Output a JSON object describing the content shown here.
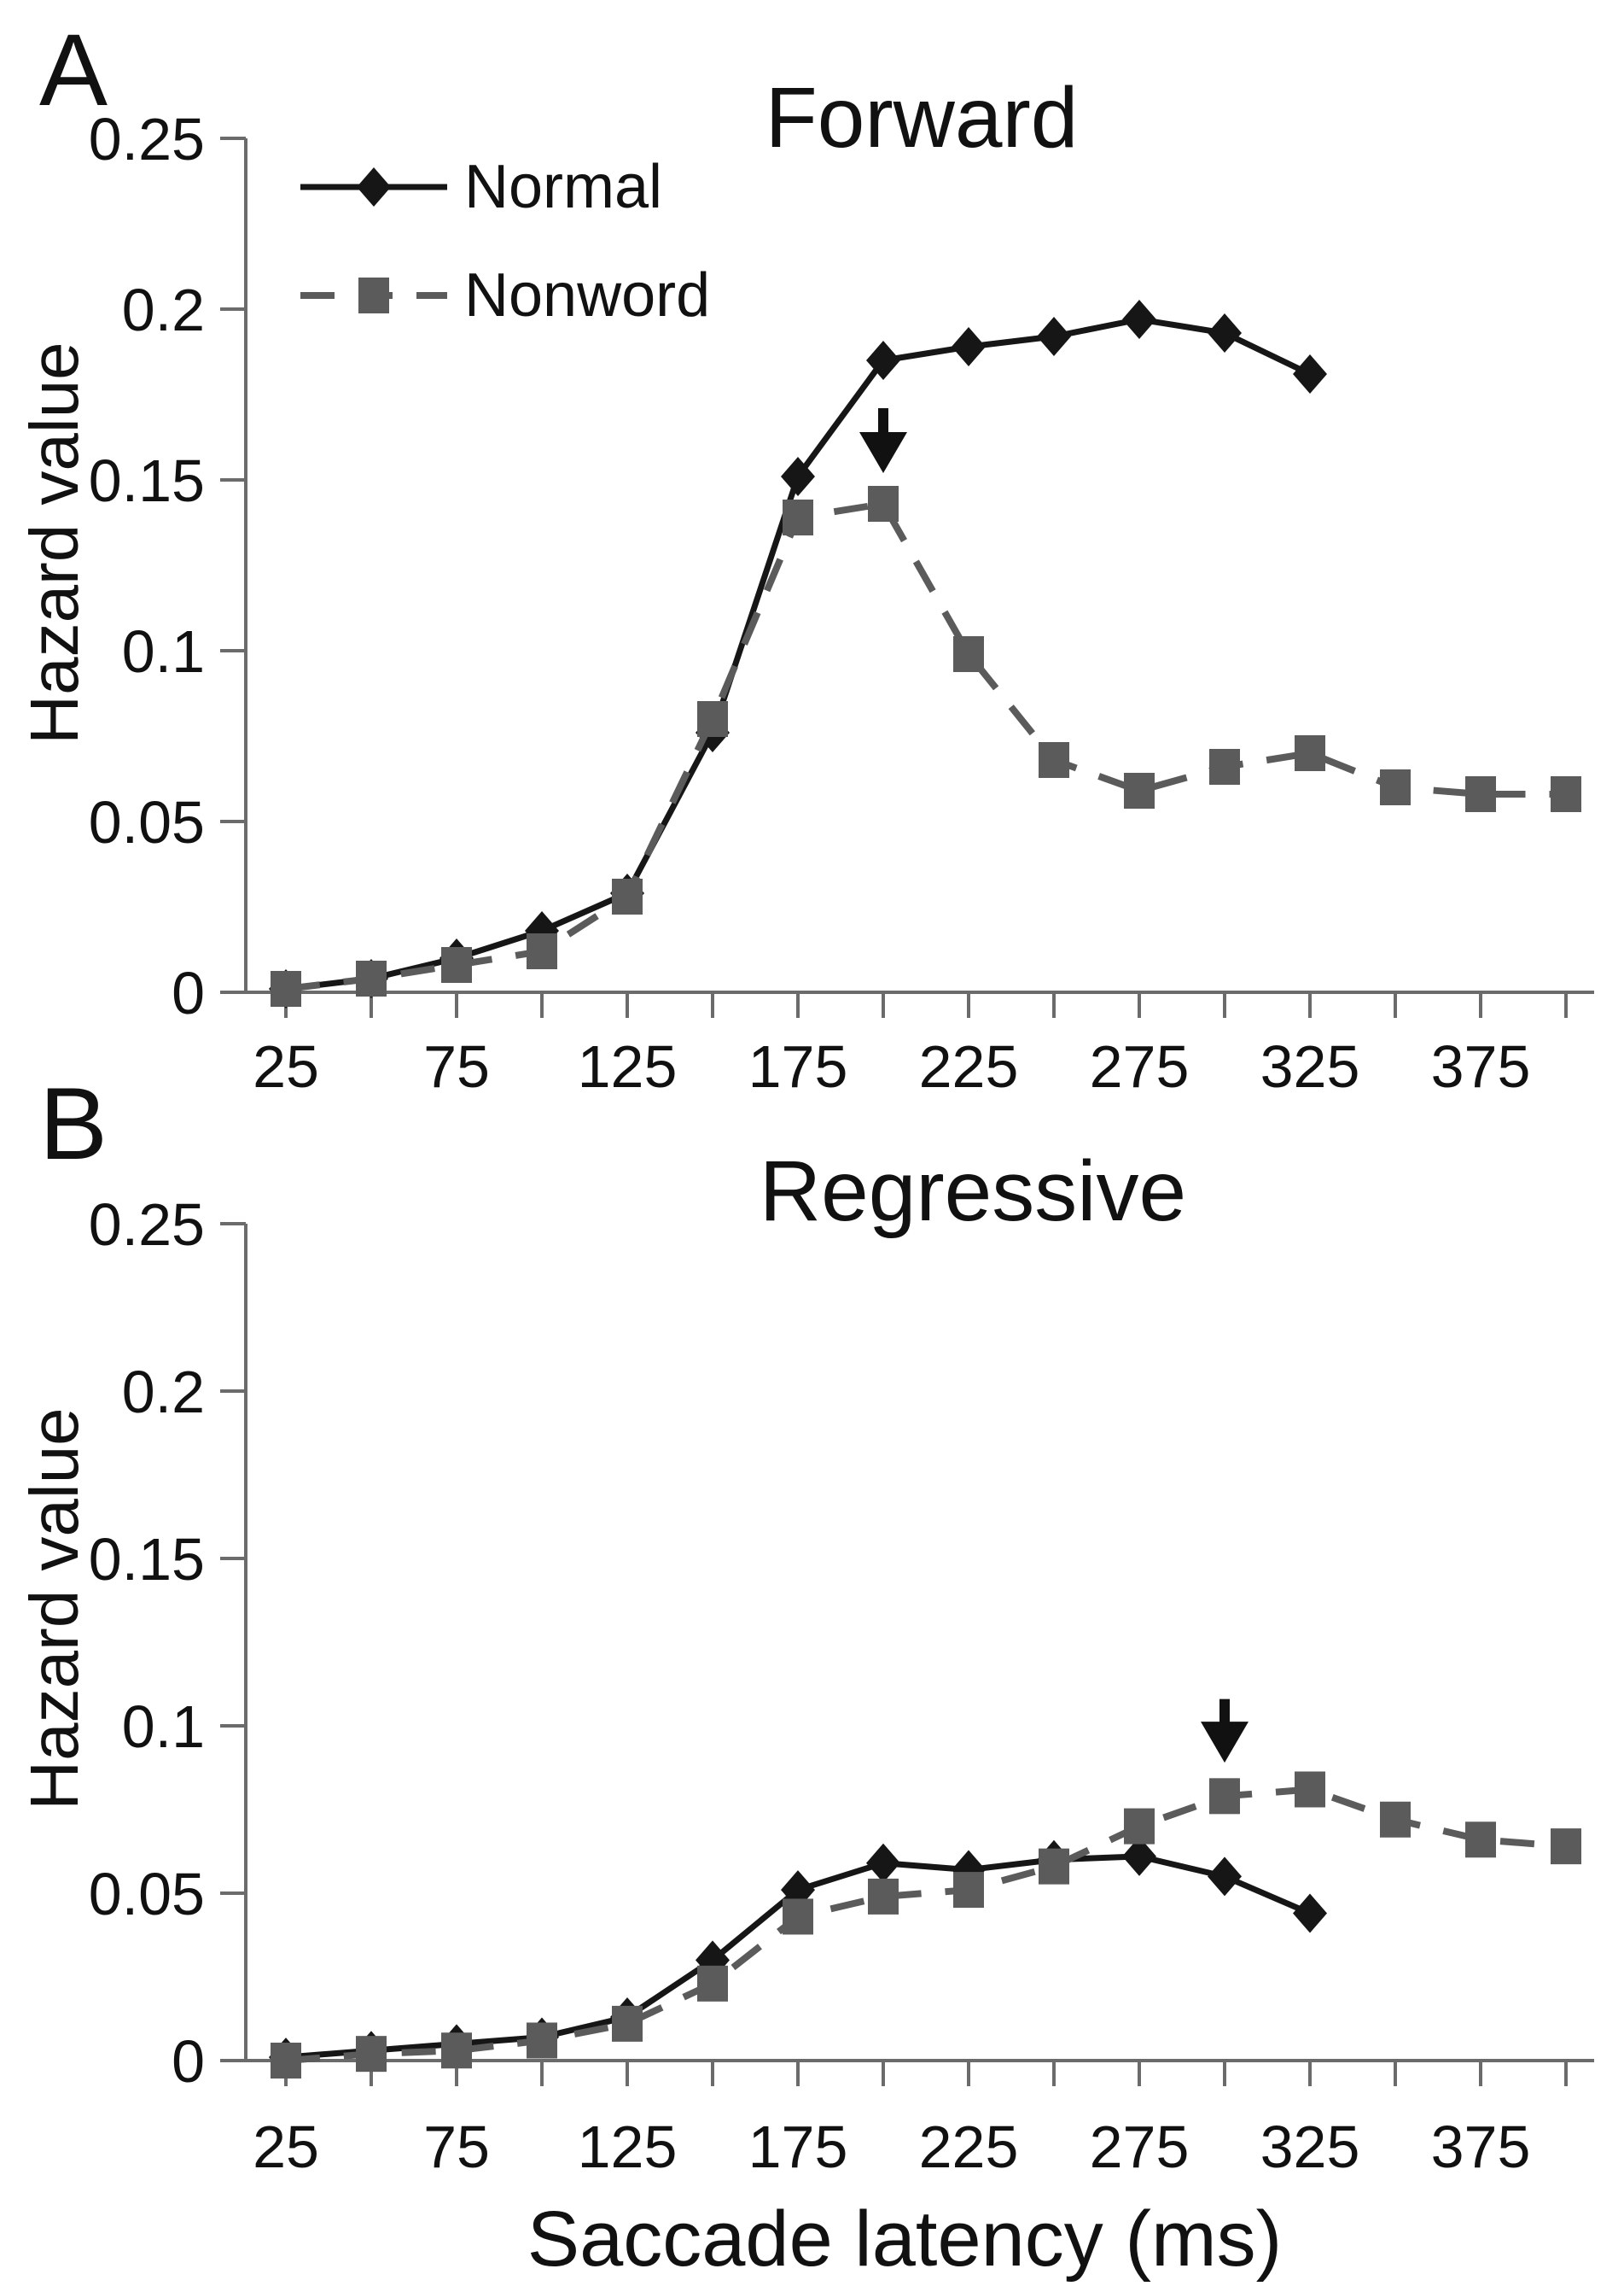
{
  "figure": {
    "x_axis_label": "Saccade latency (ms)",
    "y_axis_label": "Hazard value",
    "background_color": "#ffffff",
    "text_color": "#111111"
  },
  "legend": {
    "items": [
      {
        "label": "Normal",
        "marker": "diamond",
        "line_style": "solid",
        "color": "#161616"
      },
      {
        "label": "Nonword",
        "marker": "square",
        "line_style": "dashed",
        "color": "#5b5b5b"
      }
    ]
  },
  "chart_data": [
    {
      "type": "line",
      "panel": "A",
      "title": "Forward",
      "xlabel": "Saccade latency (ms)",
      "ylabel": "Hazard value",
      "ylim": [
        0,
        0.25
      ],
      "yticks": [
        0,
        0.05,
        0.1,
        0.15,
        0.2,
        0.25
      ],
      "ytick_labels": [
        "0",
        "0.05",
        "0.1",
        "0.15",
        "0.2",
        "0.25"
      ],
      "x": [
        25,
        50,
        75,
        100,
        125,
        150,
        175,
        200,
        225,
        250,
        275,
        300,
        325,
        350,
        375,
        400
      ],
      "xticks": [
        25,
        50,
        75,
        100,
        125,
        150,
        175,
        200,
        225,
        250,
        275,
        300,
        325,
        350,
        375,
        400
      ],
      "xticks_labeled": [
        25,
        75,
        125,
        175,
        225,
        275,
        325,
        375
      ],
      "grid": "off",
      "legend_position": "upper-left",
      "series": [
        {
          "name": "Normal",
          "marker": "diamond",
          "line_style": "solid",
          "color": "#161616",
          "values": [
            0.001,
            0.004,
            0.01,
            0.018,
            0.029,
            0.076,
            0.151,
            0.185,
            0.189,
            0.192,
            0.197,
            0.193,
            0.181,
            null,
            null,
            null
          ]
        },
        {
          "name": "Nonword",
          "marker": "square",
          "line_style": "dashed",
          "color": "#5b5b5b",
          "values": [
            0.001,
            0.004,
            0.008,
            0.012,
            0.028,
            0.08,
            0.139,
            0.143,
            0.099,
            0.068,
            0.059,
            0.066,
            0.07,
            0.06,
            0.058,
            0.058
          ]
        }
      ],
      "annotation_arrow": {
        "x": 200,
        "tip_value": 0.152,
        "tail_value": 0.171
      }
    },
    {
      "type": "line",
      "panel": "B",
      "title": "Regressive",
      "xlabel": "Saccade latency (ms)",
      "ylabel": "Hazard value",
      "ylim": [
        0,
        0.25
      ],
      "yticks": [
        0,
        0.05,
        0.1,
        0.15,
        0.2,
        0.25
      ],
      "ytick_labels": [
        "0",
        "0.05",
        "0.1",
        "0.15",
        "0.2",
        "0.25"
      ],
      "x": [
        25,
        50,
        75,
        100,
        125,
        150,
        175,
        200,
        225,
        250,
        275,
        300,
        325,
        350,
        375,
        400
      ],
      "xticks": [
        25,
        50,
        75,
        100,
        125,
        150,
        175,
        200,
        225,
        250,
        275,
        300,
        325,
        350,
        375,
        400
      ],
      "xticks_labeled": [
        25,
        75,
        125,
        175,
        225,
        275,
        325,
        375
      ],
      "grid": "off",
      "legend_position": "none",
      "series": [
        {
          "name": "Normal",
          "marker": "diamond",
          "line_style": "solid",
          "color": "#161616",
          "values": [
            0.001,
            0.003,
            0.005,
            0.007,
            0.013,
            0.03,
            0.051,
            0.059,
            0.057,
            0.06,
            0.061,
            0.055,
            0.044,
            null,
            null,
            null
          ]
        },
        {
          "name": "Nonword",
          "marker": "square",
          "line_style": "dashed",
          "color": "#5b5b5b",
          "values": [
            0.0,
            0.002,
            0.003,
            0.006,
            0.011,
            0.023,
            0.043,
            0.049,
            0.051,
            0.058,
            0.07,
            0.079,
            0.081,
            0.072,
            0.066,
            0.064
          ]
        }
      ],
      "annotation_arrow": {
        "x": 300,
        "tip_value": 0.089,
        "tail_value": 0.108
      }
    }
  ]
}
